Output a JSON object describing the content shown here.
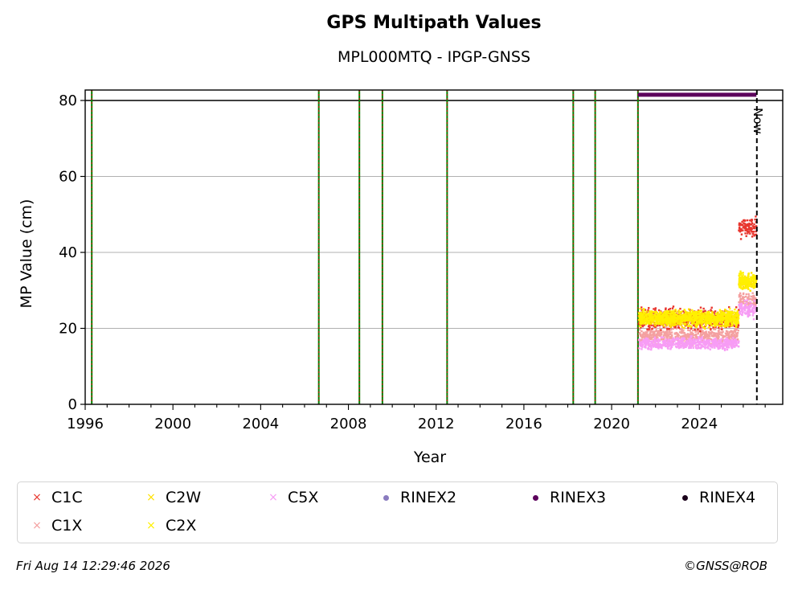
{
  "chart_data": {
    "type": "scatter",
    "title": "GPS Multipath Values",
    "subtitle": "MPL000MTQ - IPGP-GNSS",
    "xlabel": "Year",
    "ylabel": "MP Value (cm)",
    "xlim": [
      1996,
      2027.8
    ],
    "ylim": [
      0,
      80
    ],
    "x_ticks": [
      1996,
      2000,
      2004,
      2008,
      2012,
      2016,
      2020,
      2024
    ],
    "x_tick_labels": [
      "1996",
      "2000",
      "2004",
      "2008",
      "2012",
      "2016",
      "2020",
      "2024"
    ],
    "y_ticks": [
      0,
      20,
      40,
      60,
      80
    ],
    "y_tick_labels": [
      "0",
      "20",
      "40",
      "60",
      "80"
    ],
    "grid": "horizontal",
    "legend_placement": "below",
    "event_lines": [
      1996.3,
      2006.65,
      2008.5,
      2009.55,
      2012.5,
      2018.25,
      2019.25,
      2021.2
    ],
    "now": 2026.62,
    "now_label": "Now",
    "rinex3_bar": {
      "from": 2021.2,
      "to": 2026.6,
      "y": 81.5,
      "color": "#5c005c"
    },
    "series": [
      {
        "name": "C1C",
        "color": "#e8362e",
        "marker": "x",
        "segments": [
          {
            "from": 2021.25,
            "to": 2025.8,
            "level": 22.5,
            "spread": 2.5
          },
          {
            "from": 2025.8,
            "to": 2026.6,
            "level": 46.5,
            "spread": 2.5
          }
        ]
      },
      {
        "name": "C1X",
        "color": "#f4a0a0",
        "marker": "x",
        "segments": [
          {
            "from": 2021.25,
            "to": 2025.8,
            "level": 18,
            "spread": 2
          },
          {
            "from": 2025.8,
            "to": 2026.6,
            "level": 27,
            "spread": 2
          }
        ]
      },
      {
        "name": "C2W",
        "color": "#ffe100",
        "marker": "x",
        "segments": [
          {
            "from": 2021.25,
            "to": 2025.8,
            "level": 22.5,
            "spread": 2
          },
          {
            "from": 2025.8,
            "to": 2026.6,
            "level": 32,
            "spread": 2
          }
        ]
      },
      {
        "name": "C2X",
        "color": "#fff000",
        "marker": "x",
        "segments": [
          {
            "from": 2021.25,
            "to": 2025.8,
            "level": 22.8,
            "spread": 1.8
          },
          {
            "from": 2025.8,
            "to": 2026.6,
            "level": 32.5,
            "spread": 2
          }
        ]
      },
      {
        "name": "C5X",
        "color": "#f79cf5",
        "marker": "x",
        "segments": [
          {
            "from": 2021.25,
            "to": 2025.8,
            "level": 16,
            "spread": 1.5
          },
          {
            "from": 2025.8,
            "to": 2026.6,
            "level": 25,
            "spread": 2
          }
        ]
      }
    ]
  },
  "legend": [
    {
      "name": "C1C",
      "color": "#e8362e",
      "marker": "x"
    },
    {
      "name": "C2W",
      "color": "#ffe100",
      "marker": "x"
    },
    {
      "name": "C5X",
      "color": "#f79cf5",
      "marker": "x"
    },
    {
      "name": "RINEX2",
      "color": "#8a7bbf",
      "marker": "dot"
    },
    {
      "name": "RINEX3",
      "color": "#5c005c",
      "marker": "dot"
    },
    {
      "name": "RINEX4",
      "color": "#1a001a",
      "marker": "dot"
    },
    {
      "name": "C1X",
      "color": "#f4a0a0",
      "marker": "x"
    },
    {
      "name": "C2X",
      "color": "#fff000",
      "marker": "x"
    }
  ],
  "footer": {
    "timestamp": "Fri Aug 14 12:29:46 2026",
    "copyright": "©GNSS@ROB"
  }
}
